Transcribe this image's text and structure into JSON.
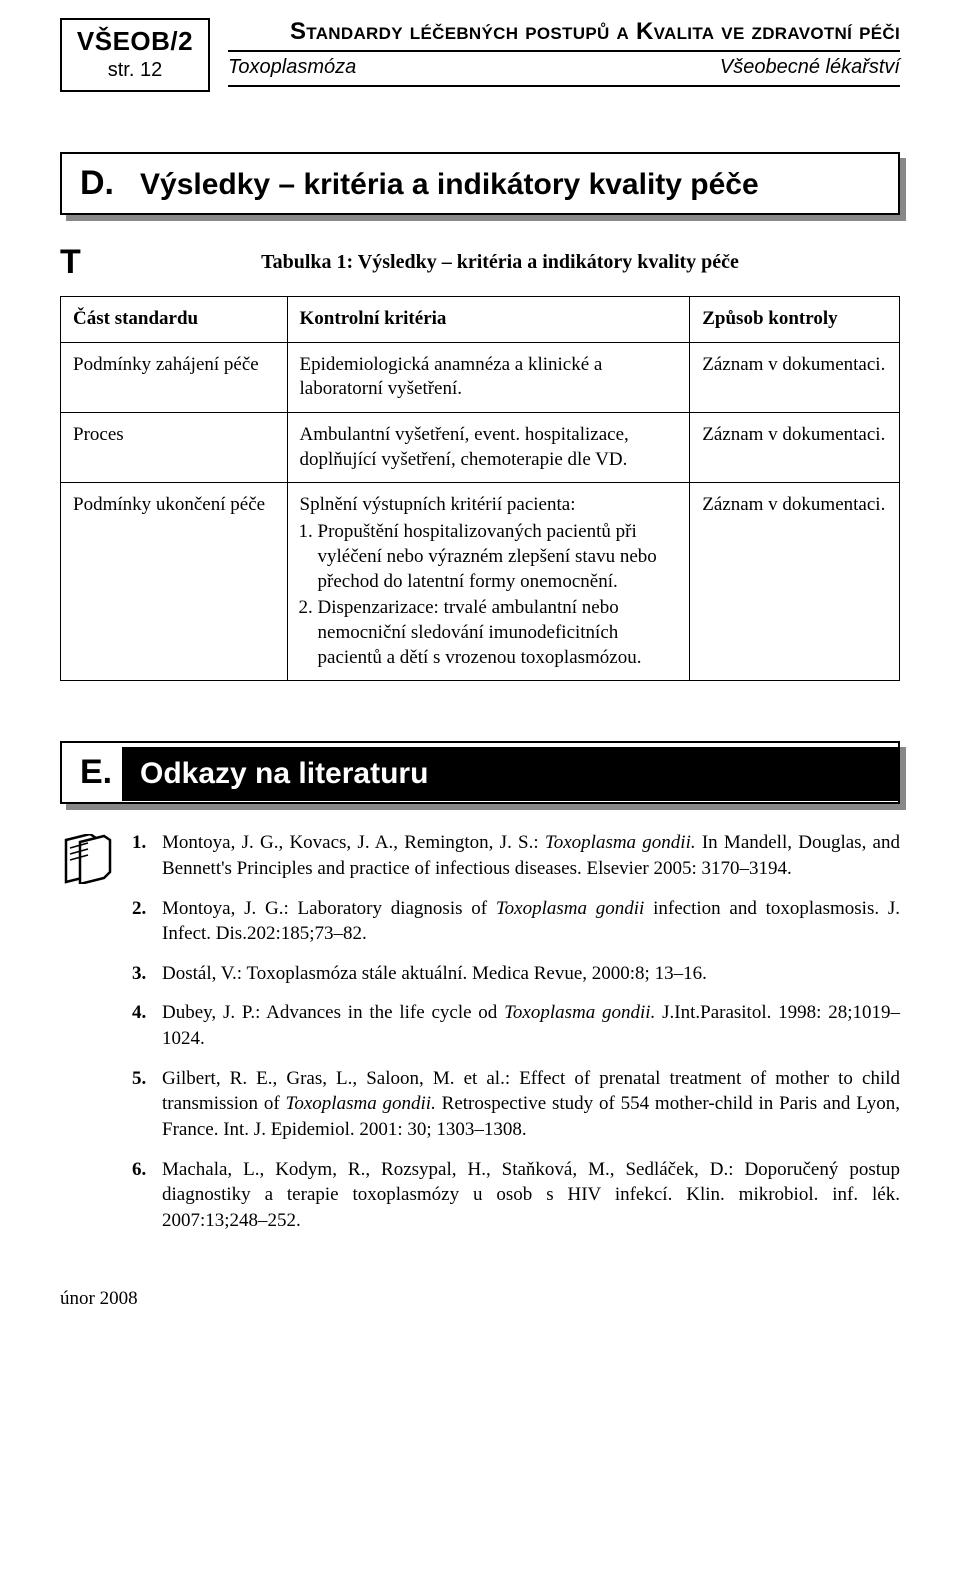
{
  "header": {
    "code": "VŠEOB/2",
    "page_label": "str. 12",
    "main_title": "Standardy léčebných postupů a Kvalita ve zdravotní péči",
    "topic_left": "Toxoplasmóza",
    "topic_right": "Všeobecné lékařství"
  },
  "section_d": {
    "letter": "D.",
    "title": "Výsledky – kritéria a indikátory kvality péče"
  },
  "table": {
    "marker": "T",
    "caption": "Tabulka 1: Výsledky – kritéria a indikátory kvality péče",
    "columns": [
      "Část standardu",
      "Kontrolní kritéria",
      "Způsob kontroly"
    ],
    "rows": [
      {
        "part": "Podmínky zahájení péče",
        "criteria_text": "Epidemiologická anamnéza a klinické a laboratorní vyšetření.",
        "control": "Záznam v dokumentaci."
      },
      {
        "part": "Proces",
        "criteria_text": "Ambulantní vyšetření, event. hospitalizace, doplňující vyšetření, chemoterapie dle VD.",
        "control": "Záznam v dokumentaci."
      },
      {
        "part": "Podmínky ukončení péče",
        "criteria_intro": "Splnění výstupních kritérií pacienta:",
        "criteria_items": [
          "Propuštění hospitalizovaných pacientů při vyléčení nebo výrazném zlepšení stavu nebo přechod do latentní formy onemocnění.",
          "Dispenzarizace: trvalé ambulantní nebo nemocniční sledování imunodeficitních pacientů a dětí s vrozenou toxoplasmózou."
        ],
        "control": "Záznam v dokumentaci."
      }
    ]
  },
  "section_e": {
    "letter": "E.",
    "title": "Odkazy na literaturu"
  },
  "references": [
    {
      "num": "1.",
      "html": "Montoya, J. G., Kovacs, J. A., Remington, J. S.: <span class=\"it\">Toxoplasma gondii.</span> In Mandell, Douglas, and Bennett's Principles and practice of infectious diseases. Elsevier 2005: 3170–3194."
    },
    {
      "num": "2.",
      "html": "Montoya, J. G.: Laboratory diagnosis of <span class=\"it\">Toxoplasma gondii</span> infection and toxoplasmosis. J. Infect. Dis.202:185;73–82."
    },
    {
      "num": "3.",
      "html": "Dostál, V.: Toxoplasmóza stále aktuální. Medica Revue, 2000:8; 13–16."
    },
    {
      "num": "4.",
      "html": "Dubey, J. P.: Advances in the life cycle od <span class=\"it\">Toxoplasma gondii.</span> J.Int.Parasitol. 1998: 28;1019–1024."
    },
    {
      "num": "5.",
      "html": "Gilbert, R. E., Gras, L., Saloon, M. et al.: Effect of prenatal treatment of mother to child transmission of <span class=\"it\">Toxoplasma gondii.</span> Retrospective study of 554 mother-child in Paris and Lyon, France. Int. J. Epidemiol. 2001: 30; 1303–1308."
    },
    {
      "num": "6.",
      "html": "Machala, L., Kodym, R., Rozsypal, H., Staňková, M., Sedláček, D.: Doporučený postup diagnostiky a terapie toxoplasmózy u osob s HIV infekcí. Klin. mikrobiol. inf. lék. 2007:13;248–252."
    }
  ],
  "footer_date": "únor 2008",
  "colors": {
    "text": "#000000",
    "bg": "#ffffff",
    "shadow": "#888888",
    "black_fill": "#000000"
  }
}
